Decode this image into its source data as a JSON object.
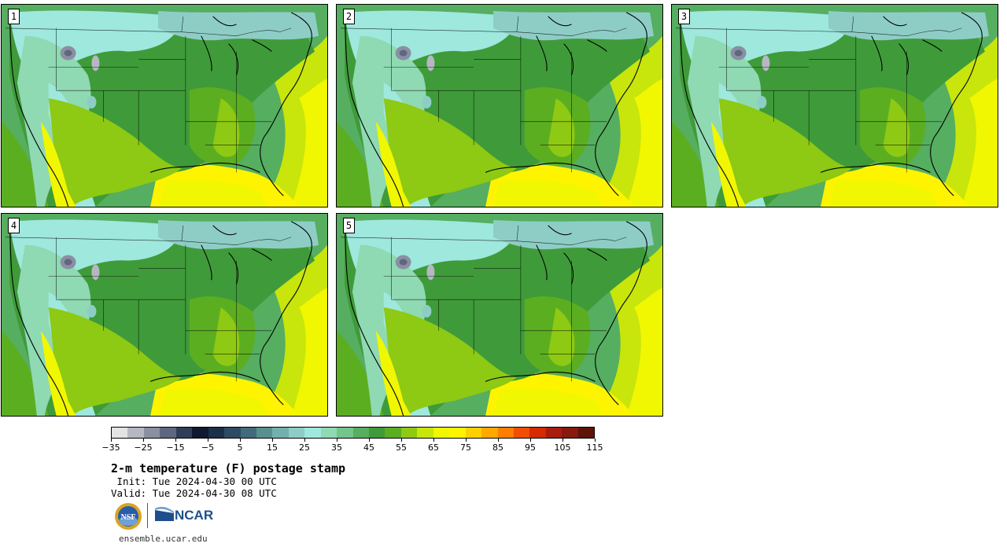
{
  "panels": [
    {
      "label": "1"
    },
    {
      "label": "2"
    },
    {
      "label": "3"
    },
    {
      "label": "4"
    },
    {
      "label": "5"
    }
  ],
  "colorbar": {
    "colors": [
      "#e3e3e3",
      "#b5b8c3",
      "#8a8fa2",
      "#5f6680",
      "#303d58",
      "#0e1a30",
      "#1c2f48",
      "#2e4b63",
      "#416b7c",
      "#58908f",
      "#73b0ad",
      "#8ecdc6",
      "#9ee8de",
      "#8fd9b3",
      "#72c68c",
      "#56ae61",
      "#3f9b39",
      "#5cae21",
      "#8ec913",
      "#c8e50c",
      "#f0f700",
      "#fff400",
      "#ffd000",
      "#ffa800",
      "#ff7d00",
      "#f04e00",
      "#d62a00",
      "#a81d0c",
      "#87190f",
      "#5e1408"
    ],
    "tick_labels": [
      "−35",
      "−25",
      "−15",
      "−5",
      "5",
      "15",
      "25",
      "35",
      "45",
      "55",
      "65",
      "75",
      "85",
      "95",
      "105",
      "115"
    ]
  },
  "title": "2-m temperature (F) postage stamp",
  "init": " Init: Tue 2024-04-30 00 UTC",
  "valid": "Valid: Tue 2024-04-30 08 UTC",
  "logos": {
    "nsf": "NSF",
    "ncar": "NCAR"
  },
  "site": "ensemble.ucar.edu"
}
